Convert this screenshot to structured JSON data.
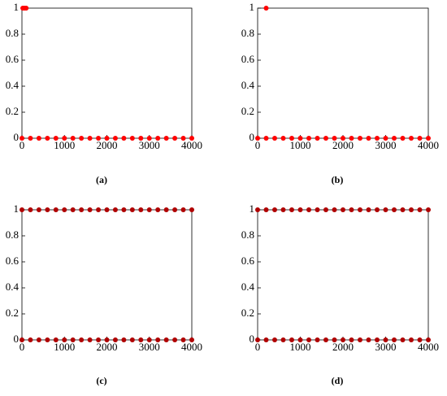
{
  "chart_data": [
    {
      "type": "scatter",
      "caption": "(a)",
      "xlim": [
        0,
        4000
      ],
      "ylim": [
        0,
        1
      ],
      "xticks": [
        0,
        1000,
        2000,
        3000,
        4000
      ],
      "yticks": [
        0,
        0.2,
        0.4,
        0.6,
        0.8,
        1
      ],
      "series": [
        {
          "color": "#ff0000",
          "x": [
            0,
            200,
            400,
            600,
            800,
            1000,
            1200,
            1400,
            1600,
            1800,
            2000,
            2200,
            2400,
            2600,
            2800,
            3000,
            3200,
            3400,
            3600,
            3800,
            4000
          ],
          "y": [
            0,
            0,
            0,
            0,
            0,
            0,
            0,
            0,
            0,
            0,
            0,
            0,
            0,
            0,
            0,
            0,
            0,
            0,
            0,
            0,
            0
          ]
        },
        {
          "color": "#ff0000",
          "x": [
            20,
            60,
            100
          ],
          "y": [
            1,
            1,
            1
          ]
        }
      ]
    },
    {
      "type": "scatter",
      "caption": "(b)",
      "xlim": [
        0,
        4000
      ],
      "ylim": [
        0,
        1
      ],
      "xticks": [
        0,
        1000,
        2000,
        3000,
        4000
      ],
      "yticks": [
        0,
        0.2,
        0.4,
        0.6,
        0.8,
        1
      ],
      "series": [
        {
          "color": "#ff0000",
          "x": [
            0,
            200,
            400,
            600,
            800,
            1000,
            1200,
            1400,
            1600,
            1800,
            2000,
            2200,
            2400,
            2600,
            2800,
            3000,
            3200,
            3400,
            3600,
            3800,
            4000
          ],
          "y": [
            0,
            0,
            0,
            0,
            0,
            0,
            0,
            0,
            0,
            0,
            0,
            0,
            0,
            0,
            0,
            0,
            0,
            0,
            0,
            0,
            0
          ]
        },
        {
          "color": "#ff0000",
          "x": [
            200
          ],
          "y": [
            1
          ]
        }
      ]
    },
    {
      "type": "scatter",
      "caption": "(c)",
      "xlim": [
        0,
        4000
      ],
      "ylim": [
        0,
        1
      ],
      "xticks": [
        0,
        1000,
        2000,
        3000,
        4000
      ],
      "yticks": [
        0,
        0.2,
        0.4,
        0.6,
        0.8,
        1
      ],
      "series": [
        {
          "color": "#b00000",
          "x": [
            0,
            200,
            400,
            600,
            800,
            1000,
            1200,
            1400,
            1600,
            1800,
            2000,
            2200,
            2400,
            2600,
            2800,
            3000,
            3200,
            3400,
            3600,
            3800,
            4000
          ],
          "y": [
            0,
            0,
            0,
            0,
            0,
            0,
            0,
            0,
            0,
            0,
            0,
            0,
            0,
            0,
            0,
            0,
            0,
            0,
            0,
            0,
            0
          ]
        },
        {
          "color": "#b00000",
          "x": [
            0,
            200,
            400,
            600,
            800,
            1000,
            1200,
            1400,
            1600,
            1800,
            2000,
            2200,
            2400,
            2600,
            2800,
            3000,
            3200,
            3400,
            3600,
            3800,
            4000
          ],
          "y": [
            1,
            1,
            1,
            1,
            1,
            1,
            1,
            1,
            1,
            1,
            1,
            1,
            1,
            1,
            1,
            1,
            1,
            1,
            1,
            1,
            1
          ]
        }
      ]
    },
    {
      "type": "scatter",
      "caption": "(d)",
      "xlim": [
        0,
        4000
      ],
      "ylim": [
        0,
        1
      ],
      "xticks": [
        0,
        1000,
        2000,
        3000,
        4000
      ],
      "yticks": [
        0,
        0.2,
        0.4,
        0.6,
        0.8,
        1
      ],
      "series": [
        {
          "color": "#b00000",
          "x": [
            0,
            200,
            400,
            600,
            800,
            1000,
            1200,
            1400,
            1600,
            1800,
            2000,
            2200,
            2400,
            2600,
            2800,
            3000,
            3200,
            3400,
            3600,
            3800,
            4000
          ],
          "y": [
            0,
            0,
            0,
            0,
            0,
            0,
            0,
            0,
            0,
            0,
            0,
            0,
            0,
            0,
            0,
            0,
            0,
            0,
            0,
            0,
            0
          ]
        },
        {
          "color": "#b00000",
          "x": [
            0,
            200,
            400,
            600,
            800,
            1000,
            1200,
            1400,
            1600,
            1800,
            2000,
            2200,
            2400,
            2600,
            2800,
            3000,
            3200,
            3400,
            3600,
            3800,
            4000
          ],
          "y": [
            1,
            1,
            1,
            1,
            1,
            1,
            1,
            1,
            1,
            1,
            1,
            1,
            1,
            1,
            1,
            1,
            1,
            1,
            1,
            1,
            1
          ]
        }
      ]
    }
  ]
}
